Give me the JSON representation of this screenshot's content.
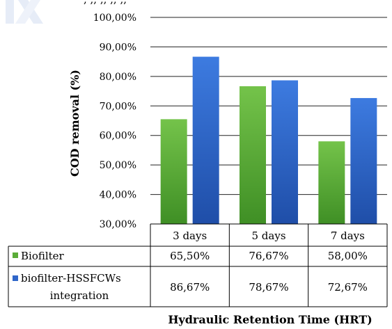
{
  "chart_data": {
    "type": "bar",
    "categories": [
      "3 days",
      "5 days",
      "7 days"
    ],
    "series": [
      {
        "name": "Biofilter",
        "values": [
          65.5,
          76.67,
          58.0
        ],
        "color": "#5aac38",
        "labels": [
          "65,50%",
          "76,67%",
          "58,00%"
        ]
      },
      {
        "name": "biofilter-HSSFCWs integration",
        "values": [
          86.67,
          78.67,
          72.67
        ],
        "color": "#2f66c9",
        "labels": [
          "86,67%",
          "78,67%",
          "72,67%"
        ]
      }
    ],
    "ylabel": "COD removal (%)",
    "xlabel": "Hydraulic Retention Time (HRT)",
    "ylim": [
      30,
      100
    ],
    "yticks": [
      30,
      40,
      50,
      60,
      70,
      80,
      90,
      100
    ],
    "ytick_labels": [
      "30,00%",
      "40,00%",
      "50,00%",
      "60,00%",
      "70,00%",
      "80,00%",
      "90,00%",
      "100,00%"
    ],
    "grid": true,
    "legend": "data-table",
    "top_cut_text": ", ,, ,, ,, ,,"
  }
}
